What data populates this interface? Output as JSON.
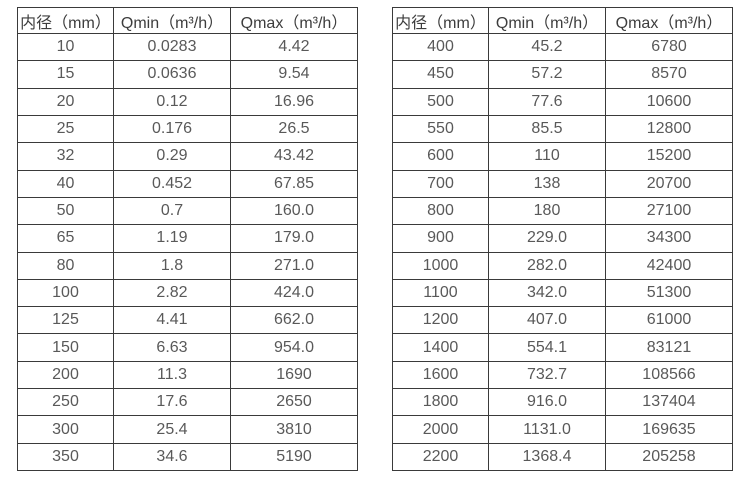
{
  "page": {
    "background": "#ffffff"
  },
  "colors": {
    "border": "#3a3a3a",
    "header_text": "#3d3d3d",
    "cell_text": "#595959"
  },
  "tables": [
    {
      "name": "flow-spec-table-left",
      "headers": [
        "内径（mm）",
        "Qmin（m³/h）",
        "Qmax（m³/h）"
      ],
      "rows": [
        [
          "10",
          "0.0283",
          "4.42"
        ],
        [
          "15",
          "0.0636",
          "9.54"
        ],
        [
          "20",
          "0.12",
          "16.96"
        ],
        [
          "25",
          "0.176",
          "26.5"
        ],
        [
          "32",
          "0.29",
          "43.42"
        ],
        [
          "40",
          "0.452",
          "67.85"
        ],
        [
          "50",
          "0.7",
          "160.0"
        ],
        [
          "65",
          "1.19",
          "179.0"
        ],
        [
          "80",
          "1.8",
          "271.0"
        ],
        [
          "100",
          "2.82",
          "424.0"
        ],
        [
          "125",
          "4.41",
          "662.0"
        ],
        [
          "150",
          "6.63",
          "954.0"
        ],
        [
          "200",
          "11.3",
          "1690"
        ],
        [
          "250",
          "17.6",
          "2650"
        ],
        [
          "300",
          "25.4",
          "3810"
        ],
        [
          "350",
          "34.6",
          "5190"
        ]
      ]
    },
    {
      "name": "flow-spec-table-right",
      "headers": [
        "内径（mm）",
        "Qmin（m³/h）",
        "Qmax（m³/h）"
      ],
      "rows": [
        [
          "400",
          "45.2",
          "6780"
        ],
        [
          "450",
          "57.2",
          "8570"
        ],
        [
          "500",
          "77.6",
          "10600"
        ],
        [
          "550",
          "85.5",
          "12800"
        ],
        [
          "600",
          "110",
          "15200"
        ],
        [
          "700",
          "138",
          "20700"
        ],
        [
          "800",
          "180",
          "27100"
        ],
        [
          "900",
          "229.0",
          "34300"
        ],
        [
          "1000",
          "282.0",
          "42400"
        ],
        [
          "1100",
          "342.0",
          "51300"
        ],
        [
          "1200",
          "407.0",
          "61000"
        ],
        [
          "1400",
          "554.1",
          "83121"
        ],
        [
          "1600",
          "732.7",
          "108566"
        ],
        [
          "1800",
          "916.0",
          "137404"
        ],
        [
          "2000",
          "1131.0",
          "169635"
        ],
        [
          "2200",
          "1368.4",
          "205258"
        ]
      ]
    }
  ]
}
